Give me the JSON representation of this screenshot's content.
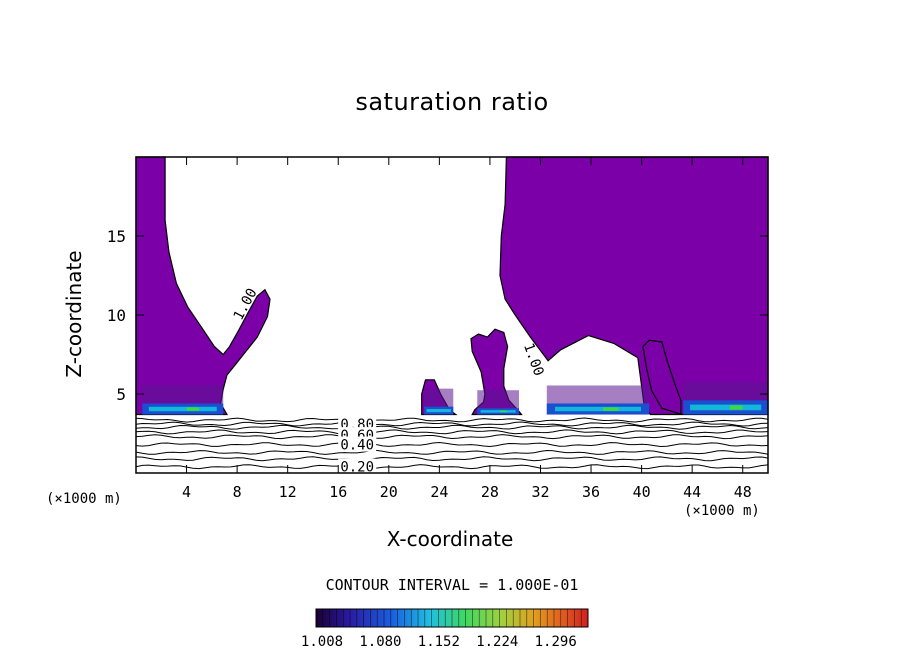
{
  "chart_data": {
    "type": "contour",
    "title": "saturation ratio",
    "xlabel": "X-coordinate",
    "ylabel": "Z-coordinate",
    "x_unit": "(×1000 m)",
    "y_unit": "(×1000 m)",
    "xlim": [
      0,
      50
    ],
    "ylim": [
      0,
      20
    ],
    "x_ticks": [
      4,
      8,
      12,
      16,
      20,
      24,
      28,
      32,
      36,
      40,
      44,
      48
    ],
    "y_ticks": [
      5,
      10,
      15
    ],
    "contour_interval_text": "CONTOUR INTERVAL = 1.000E-01",
    "colorbar_ticks": [
      "1.008",
      "1.080",
      "1.152",
      "1.224",
      "1.296"
    ],
    "colors": {
      "fill": "#7b00a8",
      "fill_dark": "#5c1590",
      "band_blue": "#1a4fd0",
      "band_cyan": "#13b8d8",
      "band_green": "#40d840"
    },
    "contour_labels": [
      {
        "text": "1.00",
        "x": 8.6,
        "z": 10.7
      },
      {
        "text": "1.00",
        "x": 31.5,
        "z": 7.2
      },
      {
        "text": "0.80",
        "x": 17.5,
        "z": 3.1
      },
      {
        "text": "0.60",
        "x": 17.5,
        "z": 2.4
      },
      {
        "text": "0.40",
        "x": 17.5,
        "z": 1.8
      },
      {
        "text": "0.20",
        "x": 17.5,
        "z": 0.4
      }
    ],
    "regions": [
      {
        "name": "left-cloud",
        "outline": [
          [
            0,
            20
          ],
          [
            2.3,
            20
          ],
          [
            2.3,
            16
          ],
          [
            2.6,
            14
          ],
          [
            3.2,
            12
          ],
          [
            4.1,
            10.5
          ],
          [
            5.2,
            9.2
          ],
          [
            6.2,
            8.0
          ],
          [
            6.9,
            7.5
          ],
          [
            7.4,
            8.0
          ],
          [
            8.1,
            9.0
          ],
          [
            8.9,
            10.2
          ],
          [
            9.6,
            11.2
          ],
          [
            10.2,
            11.6
          ],
          [
            10.6,
            11.0
          ],
          [
            10.4,
            9.9
          ],
          [
            9.6,
            8.6
          ],
          [
            8.6,
            7.6
          ],
          [
            7.9,
            6.9
          ],
          [
            7.2,
            6.2
          ],
          [
            6.9,
            5.3
          ],
          [
            6.7,
            4.4
          ],
          [
            7.2,
            3.7
          ],
          [
            0,
            3.7
          ]
        ]
      },
      {
        "name": "cloud-24",
        "outline": [
          [
            22.6,
            3.7
          ],
          [
            22.6,
            5.0
          ],
          [
            22.9,
            5.9
          ],
          [
            23.6,
            5.9
          ],
          [
            24.1,
            5.0
          ],
          [
            24.8,
            4.0
          ],
          [
            25.3,
            3.7
          ]
        ]
      },
      {
        "name": "cloud-28",
        "outline": [
          [
            26.6,
            3.7
          ],
          [
            26.8,
            4.0
          ],
          [
            27.5,
            4.5
          ],
          [
            27.6,
            5.0
          ],
          [
            27.3,
            6.4
          ],
          [
            26.6,
            7.7
          ],
          [
            26.5,
            8.5
          ],
          [
            27.1,
            8.8
          ],
          [
            27.8,
            8.6
          ],
          [
            28.4,
            9.1
          ],
          [
            29.1,
            8.9
          ],
          [
            29.4,
            8.0
          ],
          [
            29.1,
            6.6
          ],
          [
            29.1,
            5.5
          ],
          [
            29.5,
            4.6
          ],
          [
            30.3,
            3.9
          ],
          [
            30.5,
            3.7
          ]
        ]
      },
      {
        "name": "right-cloud",
        "outline": [
          [
            29.3,
            20
          ],
          [
            29.2,
            17
          ],
          [
            28.9,
            15
          ],
          [
            28.8,
            12.5
          ],
          [
            29.2,
            11.0
          ],
          [
            30.0,
            10.0
          ],
          [
            31.2,
            8.6
          ],
          [
            32.6,
            7.1
          ],
          [
            33.6,
            7.8
          ],
          [
            35.8,
            8.7
          ],
          [
            37.8,
            8.2
          ],
          [
            39.7,
            7.3
          ],
          [
            40.0,
            5.5
          ],
          [
            40.2,
            4.3
          ],
          [
            40.7,
            3.7
          ],
          [
            43.1,
            3.7
          ],
          [
            43.1,
            4.6
          ],
          [
            42.6,
            5.7
          ],
          [
            42.1,
            6.9
          ],
          [
            41.6,
            8.3
          ],
          [
            40.6,
            8.4
          ],
          [
            40.1,
            8.0
          ],
          [
            40.4,
            6.6
          ],
          [
            40.8,
            5.2
          ],
          [
            41.6,
            4.1
          ],
          [
            43.2,
            3.7
          ],
          [
            50,
            3.7
          ],
          [
            50,
            20
          ]
        ]
      }
    ],
    "bands": [
      {
        "x0": 0.5,
        "x1": 6.9,
        "z0": 3.7,
        "z1": 4.4
      },
      {
        "x0": 22.8,
        "x1": 25.1,
        "z0": 3.7,
        "z1": 4.2
      },
      {
        "x0": 27.0,
        "x1": 30.3,
        "z0": 3.7,
        "z1": 4.1
      },
      {
        "x0": 32.5,
        "x1": 40.6,
        "z0": 3.7,
        "z1": 4.4
      },
      {
        "x0": 43.3,
        "x1": 50.0,
        "z0": 3.7,
        "z1": 4.6
      }
    ],
    "contour_lines_z": [
      0.4,
      0.9,
      1.3,
      1.8,
      2.3,
      2.6,
      2.9,
      3.1,
      3.35
    ]
  }
}
